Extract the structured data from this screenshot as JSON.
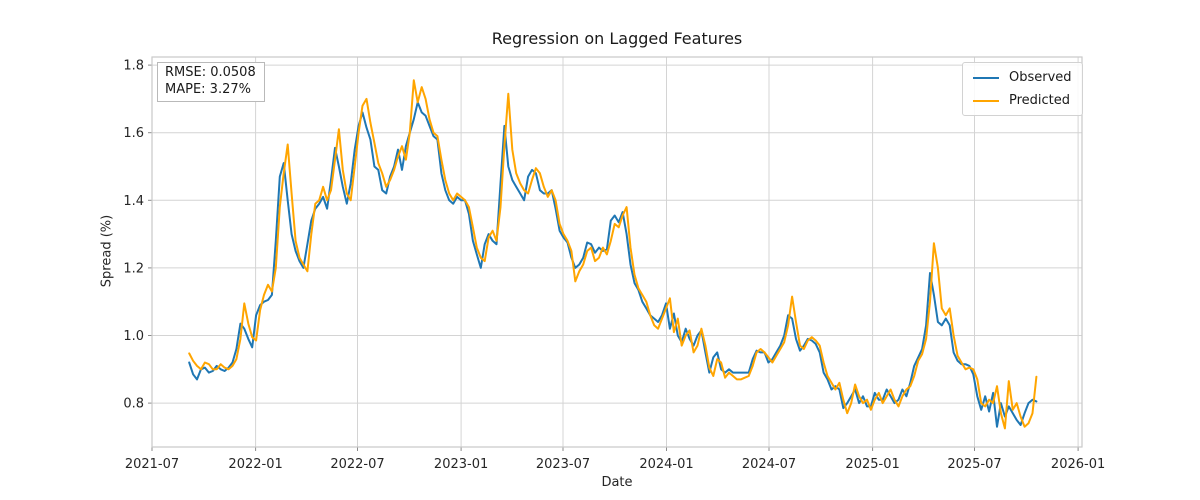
{
  "figure": {
    "title": "Regression on Lagged Features",
    "metrics_box": {
      "line1": "RMSE: 0.0508",
      "line2": "MAPE: 3.27%"
    }
  },
  "chart_data": {
    "type": "line",
    "title": "Regression on Lagged Features",
    "xlabel": "Date",
    "ylabel": "Spread (%)",
    "grid": true,
    "legend_position": "upper right",
    "annotations": [
      "RMSE: 0.0508",
      "MAPE: 3.27%"
    ],
    "x_ticks": [
      "2021-07",
      "2022-01",
      "2022-07",
      "2023-01",
      "2023-07",
      "2024-01",
      "2024-07",
      "2025-01",
      "2025-07",
      "2026-01"
    ],
    "y_ticks": [
      0.8,
      1.0,
      1.2,
      1.4,
      1.6,
      1.8
    ],
    "xlim": [
      "2021-07-01",
      "2026-01-08"
    ],
    "ylim": [
      0.67,
      1.824
    ],
    "x_start": "2021-09-05",
    "x_step_days": 7,
    "colors": {
      "observed": "#1f77b4",
      "predicted": "#ffa500",
      "grid": "#d4d4d4",
      "frame": "#c9c9c9"
    },
    "series": [
      {
        "name": "Observed",
        "color": "#1f77b4",
        "values": [
          0.92,
          0.885,
          0.87,
          0.9,
          0.905,
          0.89,
          0.895,
          0.91,
          0.9,
          0.895,
          0.905,
          0.92,
          0.96,
          1.035,
          1.02,
          0.99,
          0.965,
          1.06,
          1.09,
          1.1,
          1.105,
          1.12,
          1.28,
          1.47,
          1.51,
          1.4,
          1.3,
          1.25,
          1.22,
          1.2,
          1.27,
          1.34,
          1.375,
          1.39,
          1.41,
          1.375,
          1.46,
          1.555,
          1.5,
          1.44,
          1.39,
          1.45,
          1.55,
          1.62,
          1.66,
          1.615,
          1.58,
          1.5,
          1.49,
          1.43,
          1.42,
          1.47,
          1.5,
          1.55,
          1.49,
          1.56,
          1.6,
          1.64,
          1.69,
          1.66,
          1.65,
          1.62,
          1.59,
          1.58,
          1.48,
          1.43,
          1.4,
          1.39,
          1.41,
          1.4,
          1.4,
          1.36,
          1.28,
          1.24,
          1.2,
          1.27,
          1.3,
          1.28,
          1.27,
          1.45,
          1.62,
          1.5,
          1.46,
          1.44,
          1.42,
          1.4,
          1.47,
          1.49,
          1.48,
          1.43,
          1.42,
          1.42,
          1.43,
          1.375,
          1.31,
          1.29,
          1.275,
          1.23,
          1.2,
          1.21,
          1.23,
          1.275,
          1.27,
          1.245,
          1.26,
          1.25,
          1.255,
          1.34,
          1.355,
          1.335,
          1.365,
          1.3,
          1.21,
          1.155,
          1.135,
          1.1,
          1.08,
          1.06,
          1.05,
          1.04,
          1.06,
          1.095,
          1.02,
          1.065,
          1.0,
          0.98,
          1.02,
          0.99,
          0.97,
          1.0,
          1.015,
          0.95,
          0.89,
          0.935,
          0.95,
          0.9,
          0.89,
          0.9,
          0.89,
          0.89,
          0.89,
          0.89,
          0.89,
          0.93,
          0.955,
          0.95,
          0.95,
          0.92,
          0.93,
          0.95,
          0.97,
          1.0,
          1.06,
          1.05,
          0.99,
          0.955,
          0.97,
          0.99,
          0.985,
          0.975,
          0.95,
          0.89,
          0.87,
          0.84,
          0.85,
          0.84,
          0.785,
          0.8,
          0.82,
          0.84,
          0.8,
          0.82,
          0.79,
          0.79,
          0.83,
          0.81,
          0.81,
          0.84,
          0.82,
          0.8,
          0.81,
          0.84,
          0.82,
          0.86,
          0.91,
          0.935,
          0.96,
          1.03,
          1.185,
          1.12,
          1.04,
          1.03,
          1.05,
          1.03,
          0.95,
          0.925,
          0.915,
          0.915,
          0.91,
          0.885,
          0.82,
          0.78,
          0.82,
          0.775,
          0.83,
          0.73,
          0.8,
          0.76,
          0.79,
          0.77,
          0.75,
          0.735,
          0.77,
          0.8,
          0.81,
          0.805
        ]
      },
      {
        "name": "Predicted",
        "color": "#ffa500",
        "values": [
          0.947,
          0.925,
          0.91,
          0.9,
          0.92,
          0.915,
          0.9,
          0.9,
          0.915,
          0.905,
          0.9,
          0.91,
          0.93,
          0.99,
          1.095,
          1.035,
          0.995,
          0.985,
          1.075,
          1.12,
          1.15,
          1.13,
          1.2,
          1.38,
          1.48,
          1.565,
          1.42,
          1.28,
          1.23,
          1.21,
          1.19,
          1.3,
          1.39,
          1.4,
          1.44,
          1.4,
          1.43,
          1.52,
          1.61,
          1.49,
          1.42,
          1.4,
          1.5,
          1.6,
          1.68,
          1.7,
          1.63,
          1.57,
          1.51,
          1.48,
          1.44,
          1.46,
          1.49,
          1.53,
          1.56,
          1.52,
          1.6,
          1.755,
          1.69,
          1.735,
          1.7,
          1.64,
          1.6,
          1.59,
          1.52,
          1.46,
          1.42,
          1.4,
          1.42,
          1.41,
          1.4,
          1.38,
          1.32,
          1.26,
          1.23,
          1.22,
          1.29,
          1.31,
          1.28,
          1.38,
          1.56,
          1.715,
          1.55,
          1.48,
          1.45,
          1.43,
          1.42,
          1.46,
          1.495,
          1.48,
          1.44,
          1.41,
          1.43,
          1.4,
          1.33,
          1.3,
          1.28,
          1.25,
          1.16,
          1.19,
          1.21,
          1.25,
          1.26,
          1.22,
          1.23,
          1.26,
          1.24,
          1.28,
          1.33,
          1.32,
          1.355,
          1.38,
          1.26,
          1.18,
          1.14,
          1.12,
          1.1,
          1.06,
          1.03,
          1.02,
          1.05,
          1.08,
          1.11,
          1.01,
          1.05,
          0.97,
          1.0,
          1.015,
          0.95,
          0.97,
          1.02,
          0.97,
          0.905,
          0.88,
          0.93,
          0.92,
          0.875,
          0.89,
          0.88,
          0.87,
          0.87,
          0.875,
          0.88,
          0.91,
          0.95,
          0.96,
          0.95,
          0.935,
          0.92,
          0.94,
          0.96,
          0.98,
          1.03,
          1.115,
          1.04,
          0.97,
          0.96,
          0.985,
          0.995,
          0.985,
          0.97,
          0.92,
          0.88,
          0.86,
          0.84,
          0.86,
          0.81,
          0.77,
          0.8,
          0.855,
          0.82,
          0.8,
          0.81,
          0.78,
          0.81,
          0.83,
          0.8,
          0.82,
          0.84,
          0.81,
          0.79,
          0.82,
          0.84,
          0.85,
          0.88,
          0.925,
          0.945,
          0.99,
          1.1,
          1.273,
          1.2,
          1.08,
          1.06,
          1.08,
          1.0,
          0.94,
          0.92,
          0.9,
          0.905,
          0.9,
          0.87,
          0.8,
          0.79,
          0.81,
          0.8,
          0.85,
          0.77,
          0.725,
          0.865,
          0.78,
          0.8,
          0.76,
          0.73,
          0.74,
          0.77,
          0.878
        ]
      }
    ]
  }
}
